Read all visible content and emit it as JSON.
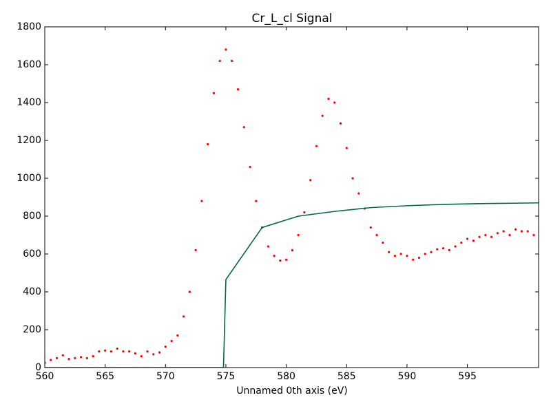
{
  "chart_data": {
    "type": "line",
    "title": "Cr_L_cl Signal",
    "x_label": "Unnamed 0th axis (eV)",
    "xlim": [
      560,
      600.9
    ],
    "ylim": [
      0,
      1800
    ],
    "xticks": [
      560,
      565,
      570,
      575,
      580,
      585,
      590,
      595
    ],
    "yticks": [
      0,
      200,
      400,
      600,
      800,
      1000,
      1200,
      1400,
      1600,
      1800
    ],
    "series": [
      {
        "mode": "markers",
        "color": "#ff0000",
        "x": [
          560,
          560.5,
          561,
          561.5,
          562,
          562.5,
          563,
          563.5,
          564,
          564.5,
          565,
          565.5,
          566,
          566.5,
          567,
          567.5,
          568,
          568.5,
          569,
          569.5,
          570,
          570.5,
          571,
          571.5,
          572,
          572.5,
          573,
          573.5,
          574,
          574.5,
          575,
          575.5,
          576,
          576.5,
          577,
          577.5,
          578,
          578.5,
          579,
          579.5,
          580,
          580.5,
          581,
          581.5,
          582,
          582.5,
          583,
          583.5,
          584,
          584.5,
          585,
          585.5,
          586,
          586.5,
          587,
          587.5,
          588,
          588.5,
          589,
          589.5,
          590,
          590.5,
          591,
          591.5,
          592,
          592.5,
          593,
          593.5,
          594,
          594.5,
          595,
          595.5,
          596,
          596.5,
          597,
          597.5,
          598,
          598.5,
          599,
          599.5,
          600,
          600.5
        ],
        "values": [
          25,
          40,
          50,
          65,
          45,
          50,
          55,
          50,
          60,
          85,
          90,
          85,
          100,
          85,
          85,
          75,
          60,
          85,
          70,
          80,
          110,
          140,
          170,
          270,
          400,
          620,
          880,
          1180,
          1450,
          1620,
          1680,
          1620,
          1470,
          1270,
          1060,
          880,
          740,
          640,
          590,
          565,
          570,
          620,
          700,
          820,
          990,
          1170,
          1330,
          1420,
          1400,
          1290,
          1160,
          1000,
          920,
          840,
          740,
          700,
          660,
          610,
          590,
          600,
          590,
          570,
          580,
          600,
          610,
          625,
          630,
          620,
          640,
          660,
          680,
          670,
          690,
          700,
          690,
          710,
          720,
          700,
          730,
          720,
          720,
          700
        ]
      },
      {
        "mode": "line",
        "color": "#00693e",
        "x": [
          560,
          574.8,
          575,
          578,
          581,
          584,
          587,
          590,
          593,
          596,
          600.9
        ],
        "values": [
          0,
          0,
          465,
          740,
          800,
          825,
          845,
          855,
          862,
          866,
          870
        ]
      }
    ]
  }
}
